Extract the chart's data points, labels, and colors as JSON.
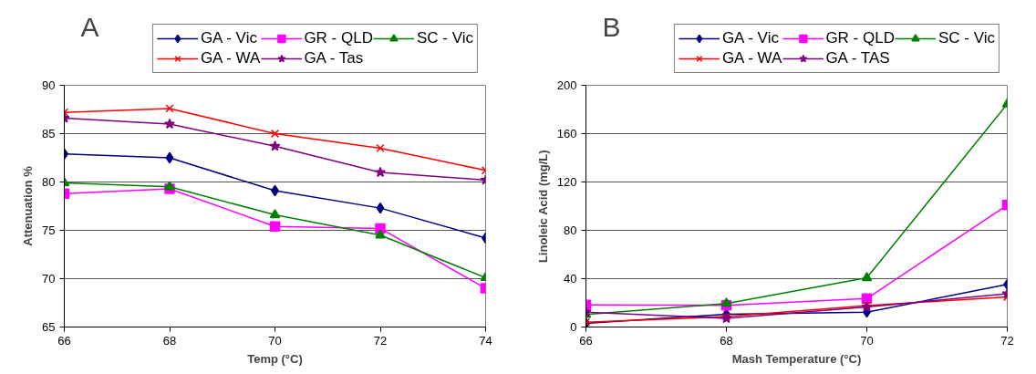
{
  "chart_data": [
    {
      "type": "line",
      "annotations": [
        "A"
      ],
      "xlabel": "Temp (°C)",
      "ylabel": "Attenuation %",
      "x": [
        66,
        68,
        70,
        72,
        74
      ],
      "xlim": [
        66,
        74
      ],
      "xticks": [
        66,
        68,
        70,
        72,
        74
      ],
      "ylim": [
        65,
        90
      ],
      "yticks": [
        65,
        70,
        75,
        80,
        85,
        90
      ],
      "grid": "y",
      "legend": "top",
      "series": [
        {
          "name": "GA - Vic",
          "color": "#000080",
          "marker": "diamond",
          "values": [
            82.9,
            82.5,
            79.1,
            77.3,
            74.2
          ]
        },
        {
          "name": "GR - QLD",
          "color": "#ff00ff",
          "marker": "square",
          "values": [
            78.8,
            79.3,
            75.4,
            75.2,
            69.0
          ]
        },
        {
          "name": "SC - Vic",
          "color": "#008000",
          "marker": "triangle",
          "values": [
            79.9,
            79.5,
            76.6,
            74.5,
            70.1
          ]
        },
        {
          "name": "GA - WA",
          "color": "#ff0000",
          "marker": "cross",
          "values": [
            87.2,
            87.6,
            85.0,
            83.5,
            81.2
          ]
        },
        {
          "name": "GA - Tas",
          "color": "#800080",
          "marker": "star",
          "values": [
            86.6,
            86.0,
            83.7,
            81.0,
            80.2
          ]
        }
      ]
    },
    {
      "type": "line",
      "annotations": [
        "B"
      ],
      "xlabel": "Mash Temperature (°C)",
      "ylabel": "Linoleic Acid (mg/L)",
      "x": [
        66,
        68,
        70,
        72
      ],
      "xlim": [
        66,
        72
      ],
      "xticks": [
        66,
        68,
        70,
        72
      ],
      "ylim": [
        0,
        200
      ],
      "yticks": [
        0,
        40,
        80,
        120,
        160,
        200
      ],
      "grid": "y",
      "legend": "top",
      "series": [
        {
          "name": "GA - Vic",
          "color": "#000080",
          "marker": "diamond",
          "values": [
            3,
            10.6,
            12.3,
            35.2
          ]
        },
        {
          "name": "GR - QLD",
          "color": "#ff00ff",
          "marker": "square",
          "values": [
            18.3,
            18,
            23.5,
            100.9
          ]
        },
        {
          "name": "SC - Vic",
          "color": "#008000",
          "marker": "triangle",
          "values": [
            10.3,
            19.5,
            40.7,
            184.5
          ]
        },
        {
          "name": "GA - WA",
          "color": "#ff0000",
          "marker": "cross",
          "values": [
            4,
            8.6,
            17.8,
            24.9
          ]
        },
        {
          "name": "GA - TAS",
          "color": "#800080",
          "marker": "star",
          "values": [
            12.3,
            7.2,
            16.6,
            27.5
          ]
        }
      ]
    }
  ]
}
